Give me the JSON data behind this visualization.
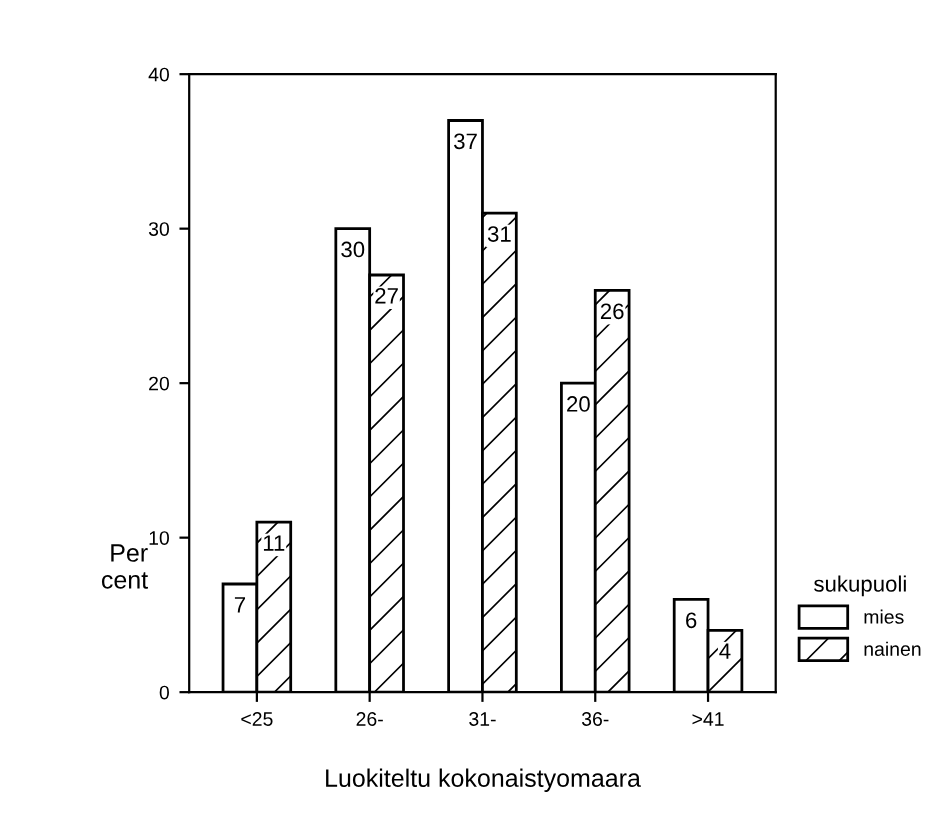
{
  "chart_data": {
    "type": "bar",
    "xlabel": "Luokiteltu kokonaistyomaara",
    "ylabel": "Per\ncent",
    "legend_title": "sukupuoli",
    "categories": [
      "<25",
      "26-",
      "31-",
      "36-",
      ">41"
    ],
    "series": [
      {
        "name": "mies",
        "color": "#ffffff",
        "values": [
          7,
          30,
          37,
          20,
          6
        ]
      },
      {
        "name": "nainen",
        "color": "#ffffff",
        "values": [
          11,
          27,
          31,
          26,
          4
        ]
      }
    ],
    "ylim": [
      0,
      40
    ],
    "yticks": [
      0,
      10,
      20,
      30,
      40
    ],
    "grid": false,
    "legend": "right",
    "data_labels": true
  }
}
